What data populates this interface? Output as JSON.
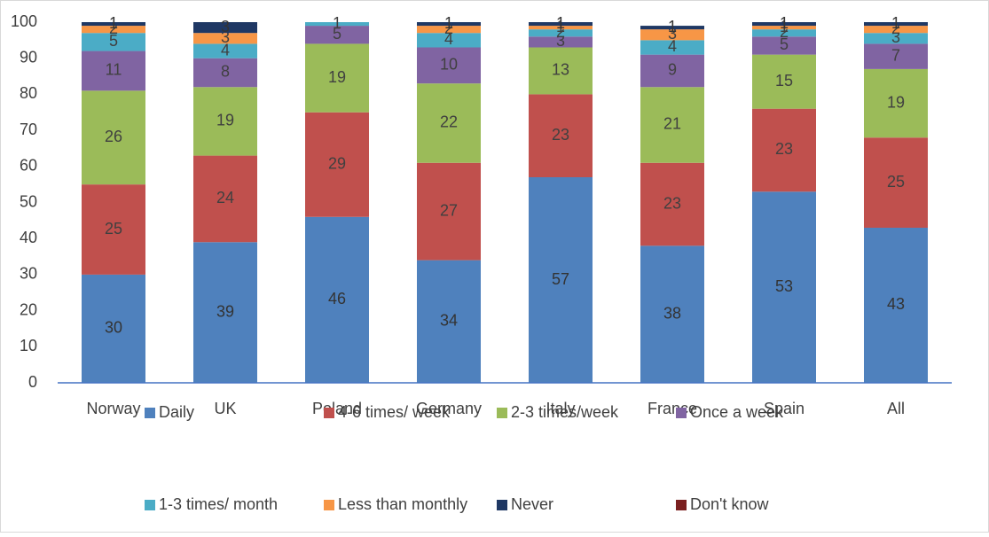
{
  "chart_data": {
    "type": "stacked_bar",
    "categories": [
      "Norway",
      "UK",
      "Poland",
      "Germany",
      "Italy",
      "France",
      "Spain",
      "All"
    ],
    "series": [
      {
        "name": "Daily",
        "color": "#4f81bd",
        "values": [
          30,
          39,
          46,
          34,
          57,
          38,
          53,
          43
        ]
      },
      {
        "name": "4-6 times/ week",
        "color": "#c0504d",
        "values": [
          25,
          24,
          29,
          27,
          23,
          23,
          23,
          25
        ]
      },
      {
        "name": "2-3 times/week",
        "color": "#9bbb59",
        "values": [
          26,
          19,
          19,
          22,
          13,
          21,
          15,
          19
        ]
      },
      {
        "name": "Once a week",
        "color": "#8064a2",
        "values": [
          11,
          8,
          5,
          10,
          3,
          9,
          5,
          7
        ]
      },
      {
        "name": "1-3 times/ month",
        "color": "#4bacc6",
        "values": [
          5,
          4,
          1,
          4,
          2,
          4,
          2,
          3
        ]
      },
      {
        "name": "Less than monthly",
        "color": "#f79646",
        "values": [
          2,
          3,
          null,
          2,
          1,
          3,
          1,
          2
        ]
      },
      {
        "name": "Never",
        "color": "#1f3864",
        "values": [
          1,
          3,
          null,
          1,
          1,
          1,
          1,
          1
        ]
      },
      {
        "name": "Don't know",
        "color": "#7b2020",
        "values": [
          null,
          null,
          null,
          null,
          null,
          null,
          null,
          null
        ]
      }
    ],
    "ylim": [
      0,
      100
    ],
    "yticks": [
      0,
      10,
      20,
      30,
      40,
      50,
      60,
      70,
      80,
      90,
      100
    ],
    "grid": false,
    "legend": "bottom"
  }
}
